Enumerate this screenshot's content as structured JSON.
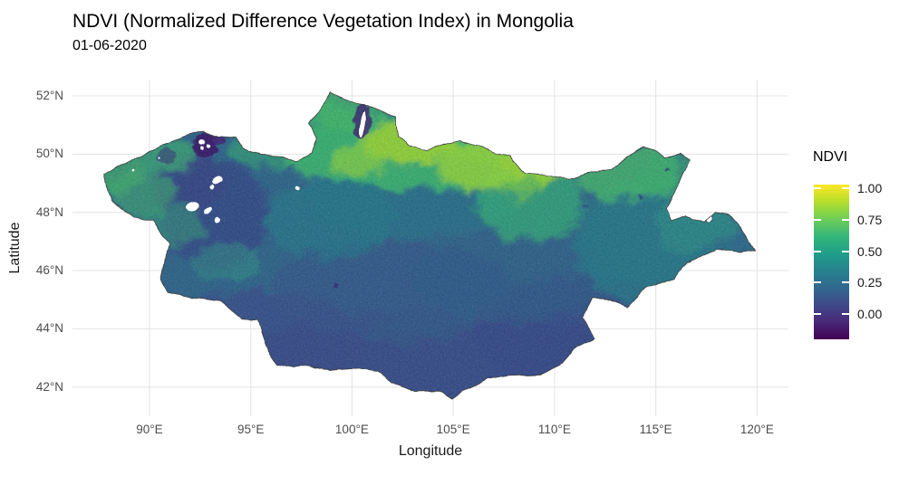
{
  "chart_data": {
    "type": "heatmap",
    "title": "NDVI (Normalized Difference Vegetation Index) in Mongolia",
    "subtitle": "01-06-2020",
    "xlabel": "Longitude",
    "ylabel": "Latitude",
    "x_axis": {
      "labels": [
        "90°E",
        "95°E",
        "100°E",
        "105°E",
        "110°E",
        "115°E",
        "120°E"
      ],
      "values": [
        90,
        95,
        100,
        105,
        110,
        115,
        120
      ]
    },
    "y_axis": {
      "labels": [
        "52°N",
        "50°N",
        "48°N",
        "46°N",
        "44°N",
        "42°N"
      ],
      "values": [
        52,
        50,
        48,
        46,
        44,
        42
      ]
    },
    "xlim": [
      86.2,
      121.55
    ],
    "ylim": [
      41.0,
      52.56
    ],
    "grid": true,
    "grid_color": "#e5e5e5",
    "legend": {
      "title": "NDVI",
      "position": "right",
      "labels": [
        "1.00",
        "0.75",
        "0.50",
        "0.25",
        "0.00"
      ],
      "values": [
        1.0,
        0.75,
        0.5,
        0.25,
        0.0
      ],
      "range": [
        -0.2,
        1.03
      ],
      "palette_name": "viridis",
      "palette": [
        "#440154",
        "#482878",
        "#3e4989",
        "#31688e",
        "#26828e",
        "#1f9e89",
        "#35b779",
        "#6ece58",
        "#b5de2b",
        "#fde725"
      ]
    },
    "map": {
      "region": "Mongolia",
      "outline_color": "#3f3f3f",
      "base_color": "#31688e",
      "outline": [
        [
          87.75,
          49.3
        ],
        [
          88.45,
          49.55
        ],
        [
          89.65,
          49.95
        ],
        [
          90.7,
          50.35
        ],
        [
          91.65,
          50.6
        ],
        [
          92.6,
          50.8
        ],
        [
          93.15,
          50.62
        ],
        [
          94.25,
          50.57
        ],
        [
          94.6,
          50.2
        ],
        [
          95.5,
          49.97
        ],
        [
          96.6,
          49.92
        ],
        [
          97.25,
          49.75
        ],
        [
          98.0,
          50.05
        ],
        [
          98.25,
          50.5
        ],
        [
          97.9,
          51.05
        ],
        [
          98.55,
          51.7
        ],
        [
          98.95,
          52.12
        ],
        [
          99.9,
          51.8
        ],
        [
          100.55,
          51.72
        ],
        [
          101.55,
          51.42
        ],
        [
          102.15,
          51.3
        ],
        [
          102.3,
          50.58
        ],
        [
          102.8,
          50.32
        ],
        [
          103.7,
          50.13
        ],
        [
          104.45,
          50.3
        ],
        [
          105.35,
          50.45
        ],
        [
          106.25,
          50.3
        ],
        [
          107.05,
          50.05
        ],
        [
          107.8,
          49.95
        ],
        [
          108.55,
          49.32
        ],
        [
          109.55,
          49.27
        ],
        [
          110.7,
          49.14
        ],
        [
          111.6,
          49.36
        ],
        [
          112.8,
          49.48
        ],
        [
          113.6,
          49.88
        ],
        [
          114.35,
          50.26
        ],
        [
          115.0,
          50.12
        ],
        [
          115.42,
          49.88
        ],
        [
          116.25,
          50.02
        ],
        [
          116.7,
          49.83
        ],
        [
          116.1,
          48.95
        ],
        [
          115.55,
          48.12
        ],
        [
          115.78,
          47.7
        ],
        [
          116.55,
          47.88
        ],
        [
          117.35,
          47.66
        ],
        [
          117.95,
          48.0
        ],
        [
          118.65,
          47.92
        ],
        [
          119.15,
          47.52
        ],
        [
          119.9,
          46.7
        ],
        [
          119.1,
          46.62
        ],
        [
          118.05,
          46.74
        ],
        [
          117.3,
          46.54
        ],
        [
          116.55,
          46.27
        ],
        [
          115.9,
          45.7
        ],
        [
          114.5,
          45.4
        ],
        [
          113.6,
          44.74
        ],
        [
          112.45,
          45.05
        ],
        [
          111.9,
          45.06
        ],
        [
          111.35,
          44.38
        ],
        [
          111.62,
          44.05
        ],
        [
          111.95,
          43.68
        ],
        [
          111.1,
          43.38
        ],
        [
          110.4,
          42.82
        ],
        [
          109.3,
          42.45
        ],
        [
          107.7,
          42.4
        ],
        [
          106.7,
          42.28
        ],
        [
          105.8,
          41.95
        ],
        [
          104.95,
          41.6
        ],
        [
          104.4,
          41.88
        ],
        [
          103.1,
          41.85
        ],
        [
          102.05,
          42.15
        ],
        [
          101.3,
          42.55
        ],
        [
          100.3,
          42.65
        ],
        [
          99.0,
          42.58
        ],
        [
          97.8,
          42.73
        ],
        [
          96.35,
          42.73
        ],
        [
          95.85,
          43.25
        ],
        [
          95.35,
          44.28
        ],
        [
          94.6,
          44.32
        ],
        [
          93.5,
          44.95
        ],
        [
          92.1,
          45.08
        ],
        [
          90.9,
          45.25
        ],
        [
          90.55,
          45.7
        ],
        [
          90.78,
          46.5
        ],
        [
          91.02,
          46.9
        ],
        [
          90.2,
          47.68
        ],
        [
          89.15,
          47.85
        ],
        [
          88.1,
          48.4
        ],
        [
          87.88,
          48.85
        ]
      ]
    },
    "ndvi_regions": [
      {
        "id": "south-gobi",
        "lon": 104,
        "lat": 42.6,
        "rx": 11,
        "ry": 2.0,
        "color": "#3a4f8d",
        "op": 0.9
      },
      {
        "id": "south-gobi-e",
        "lon": 111,
        "lat": 43.9,
        "rx": 5,
        "ry": 1.9,
        "color": "#3a4f8d",
        "op": 0.85
      },
      {
        "id": "south-gobi-w",
        "lon": 95.5,
        "lat": 43.6,
        "rx": 5,
        "ry": 1.7,
        "color": "#3c518e",
        "op": 0.8
      },
      {
        "id": "central-dark",
        "lon": 102,
        "lat": 45.4,
        "rx": 6,
        "ry": 1.6,
        "color": "#37598e",
        "op": 0.7
      },
      {
        "id": "west-basin",
        "lon": 93.2,
        "lat": 47.9,
        "rx": 2.6,
        "ry": 1.9,
        "color": "#374e8b",
        "op": 0.85
      },
      {
        "id": "west-deep",
        "lon": 91.9,
        "lat": 49.0,
        "rx": 1.8,
        "ry": 1.0,
        "color": "#3a4a8a",
        "op": 0.8
      },
      {
        "id": "mid-east",
        "lon": 108,
        "lat": 45.8,
        "rx": 5,
        "ry": 1.6,
        "color": "#32628e",
        "op": 0.6
      },
      {
        "id": "gobi-streak",
        "lon": 103.5,
        "lat": 44.1,
        "rx": 3,
        "ry": 0.5,
        "rot": -8,
        "color": "#33628d",
        "op": 0.5
      },
      {
        "id": "east-teal",
        "lon": 115,
        "lat": 47.0,
        "rx": 4,
        "ry": 2.2,
        "color": "#2a7f8e",
        "op": 0.75
      },
      {
        "id": "east-green",
        "lon": 117,
        "lat": 47.6,
        "rx": 2,
        "ry": 1.0,
        "color": "#31948b",
        "op": 0.6
      },
      {
        "id": "east-tip",
        "lon": 119,
        "lat": 46.9,
        "rx": 1.2,
        "ry": 0.6,
        "color": "#2f6f8e",
        "op": 0.7
      },
      {
        "id": "hangai-teal",
        "lon": 99,
        "lat": 47.8,
        "rx": 3.2,
        "ry": 1.4,
        "color": "#27808e",
        "op": 0.6
      },
      {
        "id": "central-teal",
        "lon": 103,
        "lat": 48.3,
        "rx": 5,
        "ry": 1.2,
        "color": "#2a7a8e",
        "op": 0.55
      },
      {
        "id": "altai-green-1",
        "lon": 89.6,
        "lat": 48.7,
        "rx": 1.6,
        "ry": 0.9,
        "color": "#3fa476",
        "op": 0.7
      },
      {
        "id": "altai-green-2",
        "lon": 91.2,
        "lat": 47.6,
        "rx": 1.5,
        "ry": 0.7,
        "color": "#35a07c",
        "op": 0.55
      },
      {
        "id": "altai-green-3",
        "lon": 93.8,
        "lat": 46.3,
        "rx": 1.8,
        "ry": 0.6,
        "color": "#2f978c",
        "op": 0.5
      },
      {
        "id": "west-tip-green",
        "lon": 88.6,
        "lat": 49.3,
        "rx": 1.1,
        "ry": 0.6,
        "color": "#44b06f",
        "op": 0.7
      },
      {
        "id": "nw-border-green",
        "lon": 90.6,
        "lat": 50.0,
        "rx": 1.8,
        "ry": 0.5,
        "color": "#3fae77",
        "op": 0.75
      },
      {
        "id": "n-border-green-w",
        "lon": 96,
        "lat": 50.2,
        "rx": 2,
        "ry": 0.7,
        "color": "#37a878",
        "op": 0.65
      },
      {
        "id": "north-band",
        "lon": 104,
        "lat": 50.1,
        "rx": 7.5,
        "ry": 1.35,
        "color": "#40bd72",
        "op": 0.85
      },
      {
        "id": "north-band-w",
        "lon": 98.5,
        "lat": 50.7,
        "rx": 2.8,
        "ry": 1.0,
        "color": "#3cb475",
        "op": 0.8
      },
      {
        "id": "bump-green",
        "lon": 99.6,
        "lat": 51.5,
        "rx": 1.6,
        "ry": 0.7,
        "color": "#45bb6e",
        "op": 0.8
      },
      {
        "id": "khentii-green",
        "lon": 108.8,
        "lat": 48.4,
        "rx": 2.6,
        "ry": 1.4,
        "color": "#35b779",
        "op": 0.7
      },
      {
        "id": "ne-green",
        "lon": 113.6,
        "lat": 49.4,
        "rx": 2.6,
        "ry": 1.0,
        "color": "#4ac16d",
        "op": 0.75
      },
      {
        "id": "ne-green-2",
        "lon": 115.8,
        "lat": 49.3,
        "rx": 1.6,
        "ry": 0.8,
        "color": "#3db374",
        "op": 0.6
      },
      {
        "id": "selenge-green",
        "lon": 106,
        "lat": 50.3,
        "rx": 2.2,
        "ry": 0.6,
        "color": "#52c569",
        "op": 0.8
      },
      {
        "id": "yellow-1",
        "lon": 102.8,
        "lat": 50.4,
        "rx": 2.3,
        "ry": 0.75,
        "color": "#a2da37",
        "op": 0.85
      },
      {
        "id": "yellow-2",
        "lon": 106.5,
        "lat": 49.6,
        "rx": 2.3,
        "ry": 0.8,
        "color": "#9bd93c",
        "op": 0.8
      },
      {
        "id": "yellow-3",
        "lon": 109.3,
        "lat": 49.8,
        "rx": 1.8,
        "ry": 0.7,
        "color": "#b3dd2f",
        "op": 0.7
      },
      {
        "id": "yellow-4",
        "lon": 100.3,
        "lat": 49.8,
        "rx": 1.3,
        "ry": 0.5,
        "color": "#8ed645",
        "op": 0.7
      },
      {
        "id": "yellow-5",
        "lon": 108.2,
        "lat": 49.3,
        "rx": 1.5,
        "ry": 0.8,
        "color": "#8ed645",
        "op": 0.6
      }
    ],
    "dark_patches": [
      {
        "id": "uvs-dark",
        "lon": 92.75,
        "lat": 50.3,
        "rx": 0.6,
        "ry": 0.42,
        "color": "#3c1d6e",
        "op": 0.95
      },
      {
        "id": "uvs-dark-2",
        "lon": 93.4,
        "lat": 50.55,
        "rx": 0.32,
        "ry": 0.22,
        "color": "#46237a",
        "op": 0.8
      },
      {
        "id": "hovsgol-dark",
        "lon": 100.5,
        "lat": 51.15,
        "rx": 0.42,
        "ry": 0.62,
        "color": "#3e2a78",
        "op": 0.85
      },
      {
        "id": "nw-dark",
        "lon": 90.8,
        "lat": 49.9,
        "rx": 0.45,
        "ry": 0.28,
        "color": "#3c3a80",
        "op": 0.6
      },
      {
        "id": "speck-1",
        "lon": 99.2,
        "lat": 45.5,
        "rx": 0.09,
        "ry": 0.07,
        "color": "#3a2a7a",
        "op": 0.85
      },
      {
        "id": "speck-2",
        "lon": 115.6,
        "lat": 49.45,
        "rx": 0.1,
        "ry": 0.07,
        "color": "#2e3f7e",
        "op": 0.85
      },
      {
        "id": "speck-3",
        "lon": 114.3,
        "lat": 48.5,
        "rx": 0.09,
        "ry": 0.06,
        "color": "#2e447f",
        "op": 0.8
      },
      {
        "id": "speck-4",
        "lon": 111.5,
        "lat": 48.2,
        "rx": 0.08,
        "ry": 0.06,
        "color": "#2f4a84",
        "op": 0.7
      }
    ],
    "water_nodata_patches": [
      {
        "id": "lake-1",
        "lon": 100.53,
        "lat": 51.03,
        "rx": 0.13,
        "ry": 0.46,
        "rot": 8,
        "stroke": "#3a2a60"
      },
      {
        "id": "lake-2",
        "lon": 92.62,
        "lat": 50.42,
        "rx": 0.15,
        "ry": 0.09
      },
      {
        "id": "lake-3",
        "lon": 92.95,
        "lat": 50.28,
        "rx": 0.11,
        "ry": 0.07
      },
      {
        "id": "lake-4",
        "lon": 92.6,
        "lat": 50.2,
        "rx": 0.08,
        "ry": 0.06
      },
      {
        "id": "lake-5",
        "lon": 93.35,
        "lat": 49.1,
        "rx": 0.28,
        "ry": 0.12,
        "rot": -15
      },
      {
        "id": "lake-6",
        "lon": 93.1,
        "lat": 48.88,
        "rx": 0.1,
        "ry": 0.08
      },
      {
        "id": "lake-7",
        "lon": 92.15,
        "lat": 48.2,
        "rx": 0.3,
        "ry": 0.17,
        "rot": -20
      },
      {
        "id": "lake-8",
        "lon": 92.9,
        "lat": 48.05,
        "rx": 0.2,
        "ry": 0.09,
        "rot": -30
      },
      {
        "id": "lake-9",
        "lon": 93.35,
        "lat": 47.75,
        "rx": 0.14,
        "ry": 0.11
      },
      {
        "id": "lake-10",
        "lon": 97.35,
        "lat": 48.85,
        "rx": 0.11,
        "ry": 0.07
      },
      {
        "id": "lake-11",
        "lon": 117.65,
        "lat": 47.77,
        "rx": 0.17,
        "ry": 0.12,
        "stroke": "#3a3a55"
      },
      {
        "id": "lake-12",
        "lon": 89.2,
        "lat": 49.45,
        "rx": 0.06,
        "ry": 0.04
      },
      {
        "id": "lake-13",
        "lon": 90.45,
        "lat": 49.85,
        "rx": 0.05,
        "ry": 0.04
      }
    ]
  }
}
